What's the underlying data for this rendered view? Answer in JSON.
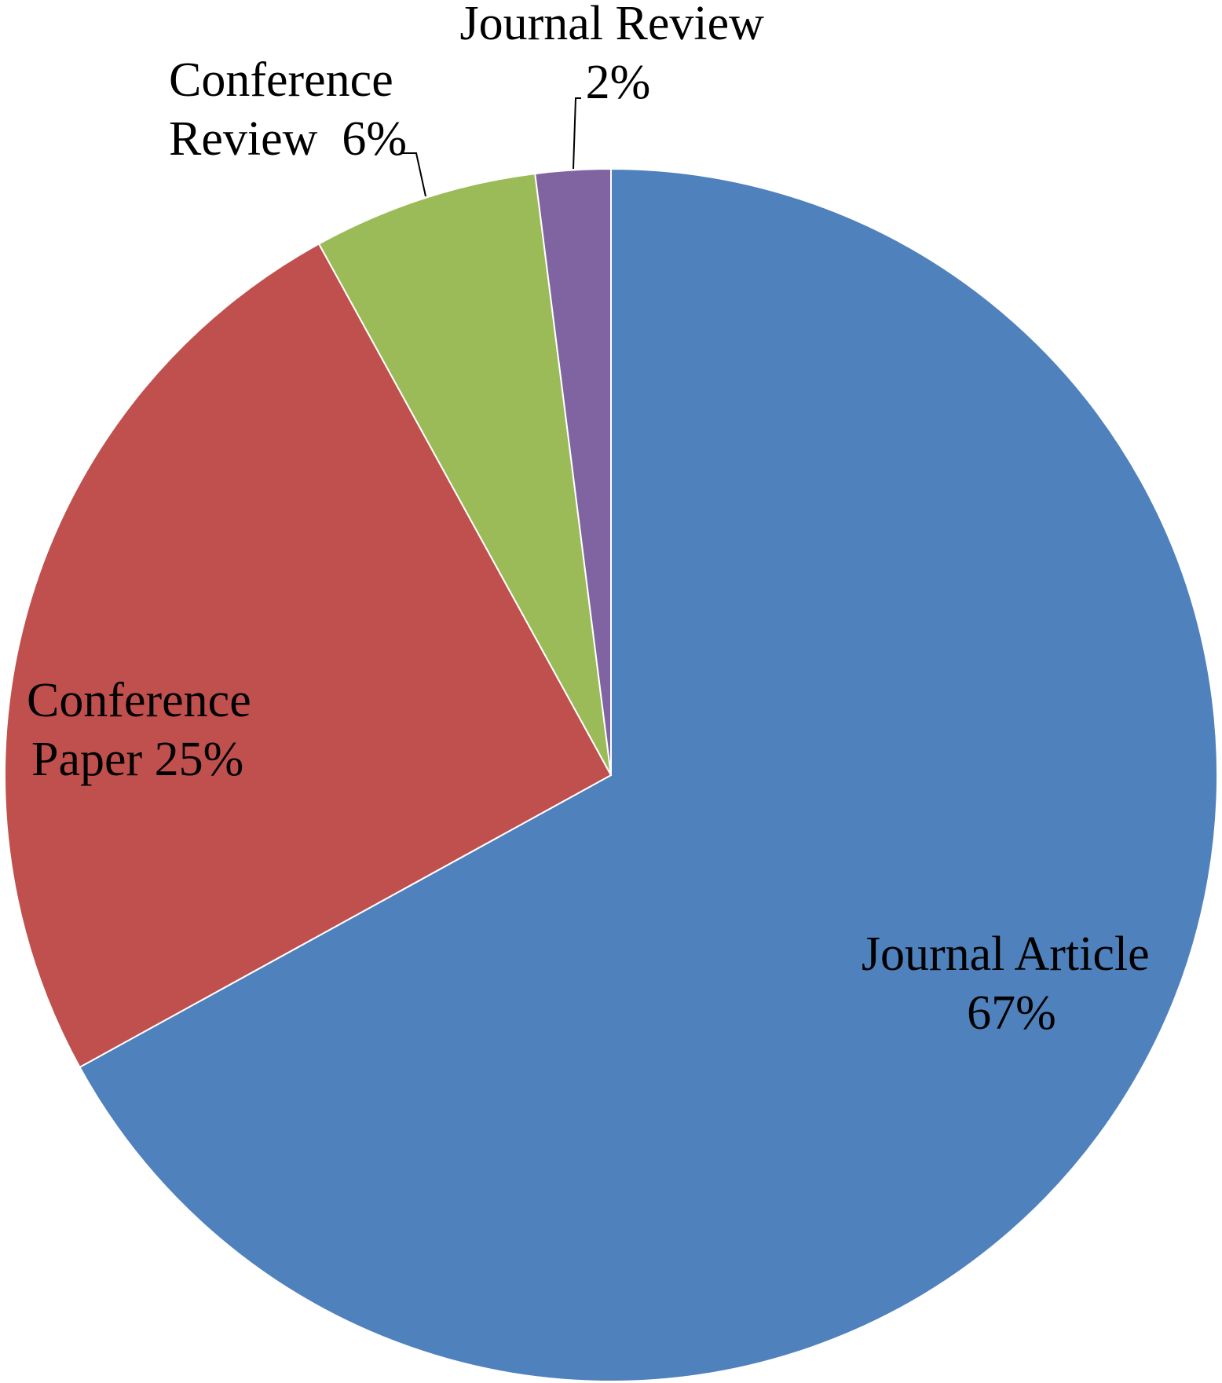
{
  "chart_data": {
    "type": "pie",
    "title": "",
    "slices": [
      {
        "label": "Journal Article",
        "value": 67,
        "value_label": "67%",
        "color": "#4F81BD"
      },
      {
        "label": "Conference Paper",
        "value": 25,
        "value_label": "25%",
        "color": "#C0504D"
      },
      {
        "label": "Conference Review",
        "value": 6,
        "value_label": "6%",
        "color": "#9BBB59"
      },
      {
        "label": "Journal Review",
        "value": 2,
        "value_label": "2%",
        "color": "#8064A2"
      }
    ],
    "labels": {
      "journal_article": [
        "Journal Article",
        "67%"
      ],
      "conference_paper": [
        "Conference",
        "Paper 25%"
      ],
      "conference_review": [
        "Conference",
        "Review  6%"
      ],
      "journal_review": [
        "Journal Review",
        "2%"
      ]
    },
    "legend": "none"
  }
}
